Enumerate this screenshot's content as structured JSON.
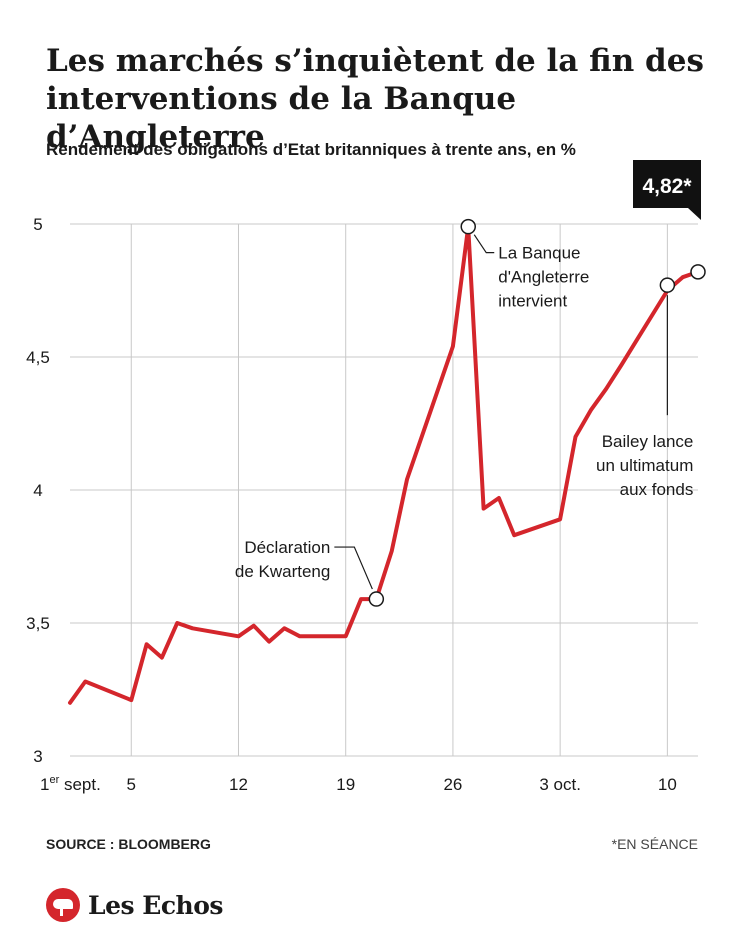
{
  "header": {
    "title": "Les marchés s’inquiètent de la fin des interventions de la Banque d’Angleterre",
    "subtitle": "Rendement des obligations d’Etat britanniques à trente ans, en %"
  },
  "footer": {
    "source": "SOURCE : BLOOMBERG",
    "note": "*EN SÉANCE",
    "logo": "Les Echos"
  },
  "colors": {
    "line": "#d4262c",
    "grid": "#c8c8c8",
    "text": "#1a1a1a",
    "callout_bg": "#111111",
    "logo": "#d4262c"
  },
  "chart_data": {
    "type": "line",
    "title": "Les marchés s’inquiètent de la fin des interventions de la Banque d’Angleterre",
    "subtitle": "Rendement des obligations d’Etat britanniques à trente ans, en %",
    "ylim": [
      3,
      5
    ],
    "yticks": [
      {
        "value": 3,
        "label": "3"
      },
      {
        "value": 3.5,
        "label": "3,5"
      },
      {
        "value": 4,
        "label": "4"
      },
      {
        "value": 4.5,
        "label": "4,5"
      },
      {
        "value": 5,
        "label": "5"
      }
    ],
    "xlim": [
      "2022-09-01",
      "2022-10-12"
    ],
    "xticks": [
      {
        "date": "2022-09-01",
        "label": "1",
        "sup": "er",
        "after": " sept."
      },
      {
        "date": "2022-09-05",
        "label": "5"
      },
      {
        "date": "2022-09-12",
        "label": "12"
      },
      {
        "date": "2022-09-19",
        "label": "19"
      },
      {
        "date": "2022-09-26",
        "label": "26"
      },
      {
        "date": "2022-10-03",
        "label": "3 oct."
      },
      {
        "date": "2022-10-10",
        "label": "10"
      }
    ],
    "grid": true,
    "series": [
      {
        "points": [
          {
            "x": "2022-09-01",
            "y": 3.2
          },
          {
            "x": "2022-09-02",
            "y": 3.28
          },
          {
            "x": "2022-09-05",
            "y": 3.21
          },
          {
            "x": "2022-09-06",
            "y": 3.42
          },
          {
            "x": "2022-09-07",
            "y": 3.37
          },
          {
            "x": "2022-09-08",
            "y": 3.5
          },
          {
            "x": "2022-09-09",
            "y": 3.48
          },
          {
            "x": "2022-09-12",
            "y": 3.45
          },
          {
            "x": "2022-09-13",
            "y": 3.49
          },
          {
            "x": "2022-09-14",
            "y": 3.43
          },
          {
            "x": "2022-09-15",
            "y": 3.48
          },
          {
            "x": "2022-09-16",
            "y": 3.45
          },
          {
            "x": "2022-09-19",
            "y": 3.45
          },
          {
            "x": "2022-09-20",
            "y": 3.59
          },
          {
            "x": "2022-09-21",
            "y": 3.59
          },
          {
            "x": "2022-09-22",
            "y": 3.77
          },
          {
            "x": "2022-09-23",
            "y": 4.04
          },
          {
            "x": "2022-09-26",
            "y": 4.54
          },
          {
            "x": "2022-09-27",
            "y": 4.99
          },
          {
            "x": "2022-09-28",
            "y": 3.93
          },
          {
            "x": "2022-09-29",
            "y": 3.97
          },
          {
            "x": "2022-09-30",
            "y": 3.83
          },
          {
            "x": "2022-10-03",
            "y": 3.89
          },
          {
            "x": "2022-10-04",
            "y": 4.2
          },
          {
            "x": "2022-10-05",
            "y": 4.3
          },
          {
            "x": "2022-10-06",
            "y": 4.38
          },
          {
            "x": "2022-10-07",
            "y": 4.47
          },
          {
            "x": "2022-10-10",
            "y": 4.75
          },
          {
            "x": "2022-10-11",
            "y": 4.8
          },
          {
            "x": "2022-10-12",
            "y": 4.82
          }
        ]
      }
    ],
    "annotations": [
      {
        "x": "2022-09-21",
        "y": 3.59,
        "lines": [
          "Déclaration",
          "de Kwarteng"
        ],
        "position": "above-left"
      },
      {
        "x": "2022-09-27",
        "y": 4.99,
        "lines": [
          "La Banque",
          "d'Angleterre",
          "intervient"
        ],
        "position": "right"
      },
      {
        "x": "2022-10-10",
        "y": 4.77,
        "lines": [
          "Bailey lance",
          "un ultimatum",
          "aux fonds"
        ],
        "position": "below"
      },
      {
        "x": "2022-10-12",
        "y": 4.82,
        "label": "4,82*",
        "position": "callout-top"
      }
    ]
  }
}
